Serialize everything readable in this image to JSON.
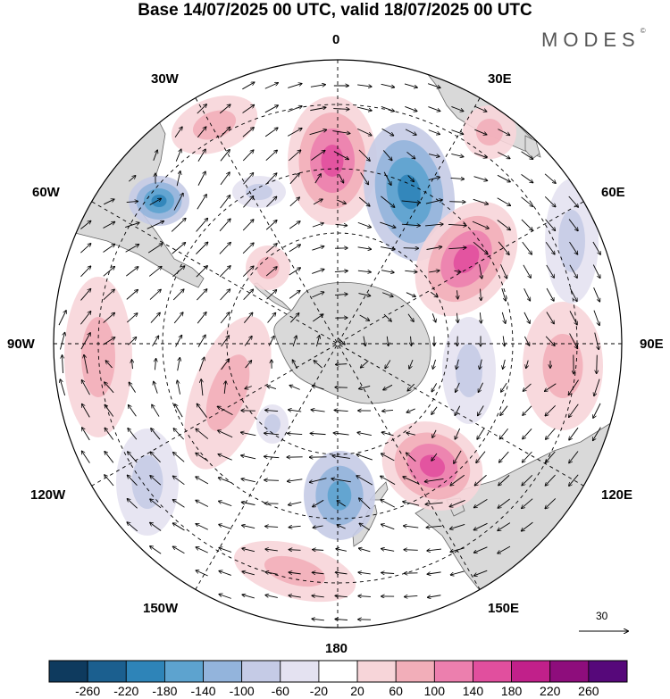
{
  "title": "Base 14/07/2025 00 UTC, valid 18/07/2025 00 UTC",
  "brand": "MODES",
  "brand_mark": "©",
  "longitude_labels": {
    "top": "0",
    "e30": "30E",
    "e60": "60E",
    "e90": "90E",
    "e120": "120E",
    "e150": "150E",
    "bottom": "180",
    "w150": "150W",
    "w120": "120W",
    "w90": "90W",
    "w60": "60W",
    "w30": "30W"
  },
  "reference_vector": "30",
  "colorbar": {
    "ticks": [
      "-260",
      "-220",
      "-180",
      "-140",
      "-100",
      "-60",
      "-20",
      "20",
      "60",
      "100",
      "140",
      "180",
      "220",
      "260"
    ],
    "colors": [
      "#0e3a5e",
      "#1b5f8f",
      "#2e84b8",
      "#5da3cf",
      "#93b4dc",
      "#c5cbe6",
      "#e4e2f1",
      "#ffffff",
      "#f7d5d9",
      "#f2aeb9",
      "#ec7fae",
      "#e14f9e",
      "#c1208a",
      "#8e0d7c",
      "#56087a"
    ]
  },
  "colors": {
    "land": "#d9d9d9",
    "coast": "#666666",
    "grid": "#000000"
  }
}
